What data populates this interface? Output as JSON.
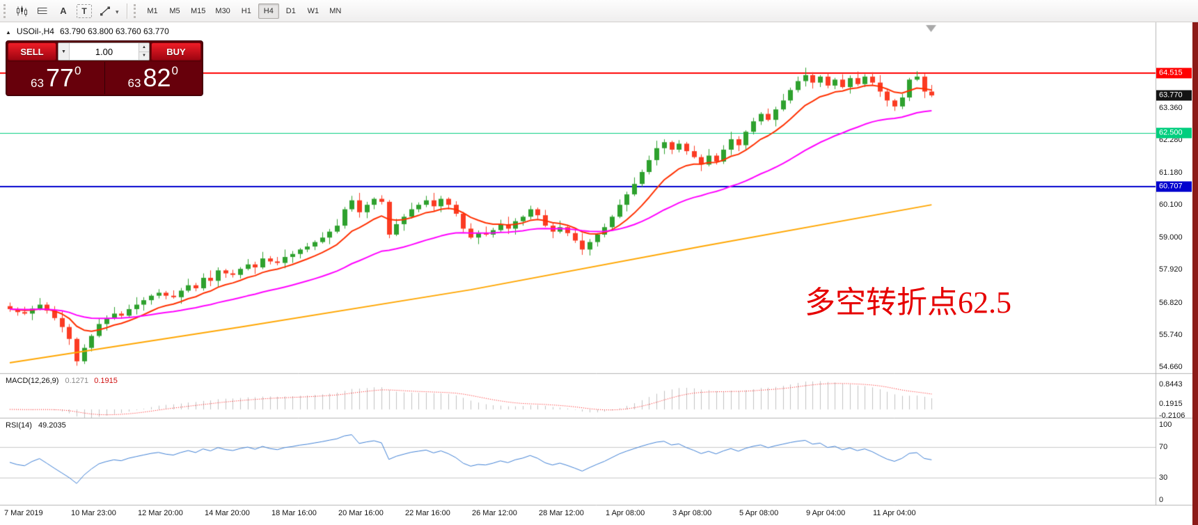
{
  "toolbar": {
    "icons": [
      {
        "name": "new-chart-icon",
        "glyph": ""
      },
      {
        "name": "chart-lines-icon",
        "glyph": ""
      },
      {
        "name": "text-label-icon",
        "glyph": "A"
      },
      {
        "name": "text-box-icon",
        "glyph": "T"
      },
      {
        "name": "drawing-tools-icon",
        "glyph": ""
      }
    ],
    "timeframes": [
      "M1",
      "M5",
      "M15",
      "M30",
      "H1",
      "H4",
      "D1",
      "W1",
      "MN"
    ],
    "active_timeframe": "H4"
  },
  "chart_header": {
    "symbol_period": "USOil-,H4",
    "ohlc": "63.790 63.800 63.760 63.770"
  },
  "trade_panel": {
    "sell_label": "SELL",
    "buy_label": "BUY",
    "volume": "1.00",
    "bid": {
      "prefix": "63",
      "digits": "77",
      "sup": "0"
    },
    "ask": {
      "prefix": "63",
      "digits": "82",
      "sup": "0"
    }
  },
  "annotation": {
    "text": "多空转折点62.5",
    "color": "#e60000"
  },
  "macd_panel": {
    "title": "MACD(12,26,9)",
    "value_main": "0.1271",
    "value_signal": "0.1915"
  },
  "rsi_panel": {
    "title": "RSI(14)",
    "value": "49.2035"
  },
  "time_axis": {
    "labels": [
      "7 Mar 2019",
      "10 Mar 23:00",
      "12 Mar 20:00",
      "14 Mar 20:00",
      "18 Mar 16:00",
      "20 Mar 16:00",
      "22 Mar 16:00",
      "26 Mar 12:00",
      "28 Mar 12:00",
      "1 Apr 08:00",
      "3 Apr 08:00",
      "5 Apr 08:00",
      "9 Apr 04:00",
      "11 Apr 04:00"
    ]
  },
  "chart_data": {
    "main": {
      "type": "candlestick",
      "symbol": "USOil-",
      "timeframe": "H4",
      "ylim": [
        54.45,
        66.13
      ],
      "ticks": [
        63.36,
        62.28,
        61.18,
        60.1,
        59,
        57.92,
        56.82,
        55.74,
        54.66
      ],
      "hlines": [
        {
          "price": 64.515,
          "color": "#FF0000",
          "width": 2,
          "label": "64.515",
          "badge": true
        },
        {
          "price": 62.5,
          "color": "#00CE7E",
          "width": 1,
          "label": "62.500",
          "badge": true
        },
        {
          "price": 60.707,
          "color": "#0000CE",
          "width": 2,
          "label": "60.707",
          "badge": true
        }
      ],
      "current_price": {
        "value": 63.77,
        "label": "63.770",
        "badge_color": "#141414"
      },
      "candles": {
        "first_open": 56.7,
        "closes": [
          56.6,
          56.5,
          56.45,
          56.62,
          56.75,
          56.55,
          56.3,
          56.0,
          55.6,
          54.85,
          55.3,
          55.7,
          56.1,
          56.3,
          56.45,
          56.38,
          56.6,
          56.75,
          56.9,
          57.05,
          57.15,
          57.05,
          57.0,
          57.22,
          57.4,
          57.3,
          57.65,
          57.55,
          57.9,
          57.8,
          57.75,
          57.95,
          58.1,
          58.0,
          58.3,
          58.2,
          58.15,
          58.35,
          58.45,
          58.6,
          58.7,
          58.85,
          59.0,
          59.2,
          59.4,
          59.95,
          60.25,
          59.85,
          60.1,
          60.3,
          60.2,
          59.1,
          59.45,
          59.7,
          59.95,
          60.1,
          60.25,
          60.05,
          60.3,
          60.1,
          59.8,
          59.3,
          59.0,
          59.15,
          59.1,
          59.25,
          59.45,
          59.3,
          59.55,
          59.7,
          59.95,
          59.75,
          59.4,
          59.2,
          59.35,
          59.15,
          58.9,
          58.6,
          58.85,
          59.1,
          59.35,
          59.7,
          60.1,
          60.45,
          60.8,
          61.2,
          61.6,
          62.0,
          62.2,
          61.95,
          62.15,
          61.9,
          61.7,
          61.45,
          61.75,
          61.55,
          61.95,
          62.3,
          62.1,
          62.55,
          62.9,
          63.15,
          62.95,
          63.3,
          63.6,
          63.95,
          64.25,
          64.45,
          64.2,
          64.4,
          64.1,
          64.3,
          64.05,
          64.35,
          64.15,
          64.4,
          64.2,
          63.9,
          63.6,
          63.4,
          63.7,
          64.3,
          64.4,
          63.9,
          63.77
        ],
        "bull_color": "#2EA12E",
        "bear_color": "#FB3B23",
        "wick_high_pattern": [
          0.12,
          0.06,
          0.18,
          0.09,
          0.22,
          0.08,
          0.15,
          0.25,
          0.1,
          0.05
        ],
        "wick_low_pattern": [
          0.12,
          0.06,
          0.18,
          0.09,
          0.22,
          0.08,
          0.15,
          0.05,
          0.1,
          0.2
        ]
      },
      "moving_averages": [
        {
          "name": "fast",
          "method": "ema",
          "period": 10,
          "color": "#FF3000",
          "width": 2
        },
        {
          "name": "mid",
          "method": "ema",
          "period": 34,
          "color": "#FF00FF",
          "width": 2
        },
        {
          "name": "slow",
          "method": "points",
          "color": "#FFA600",
          "width": 2,
          "points": [
            [
              0,
              54.8
            ],
            [
              0.25,
              56.0
            ],
            [
              0.5,
              57.25
            ],
            [
              0.75,
              58.7
            ],
            [
              1,
              60.1
            ]
          ]
        }
      ]
    },
    "macd": {
      "type": "macd",
      "params": [
        12,
        26,
        9
      ],
      "ylim": [
        -0.281,
        1.172
      ],
      "axis": [
        {
          "text": "0.8443",
          "value": 0.8443
        },
        {
          "text": "0.1915",
          "value": 0.1915
        },
        {
          "text": "-0.2106",
          "value": -0.2106
        }
      ],
      "histogram_color": "#C0C0C0",
      "signal_color": "#FF0000"
    },
    "rsi": {
      "type": "rsi",
      "period": 14,
      "ylim": [
        -6.5,
        107.4
      ],
      "ticks": [
        100,
        70,
        30,
        0
      ],
      "levels": [
        70,
        30
      ],
      "line_color": "#3E7FD4",
      "level_color": "#C9C9C9"
    }
  }
}
